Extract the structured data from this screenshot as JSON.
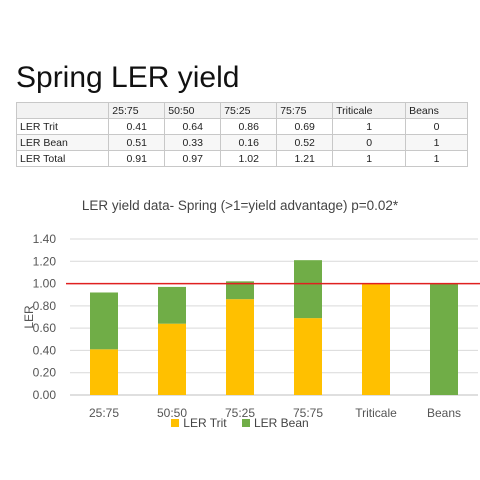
{
  "slide": {
    "title": "Spring LER yield"
  },
  "table": {
    "header": [
      "",
      "25:75",
      "50:50",
      "75:25",
      "75:75",
      "Triticale",
      "Beans"
    ],
    "rows": [
      [
        "LER Trit",
        "0.41",
        "0.64",
        "0.86",
        "0.69",
        "1",
        "0"
      ],
      [
        "LER Bean",
        "0.51",
        "0.33",
        "0.16",
        "0.52",
        "0",
        "1"
      ],
      [
        "LER Total",
        "0.91",
        "0.97",
        "1.02",
        "1.21",
        "1",
        "1"
      ]
    ]
  },
  "chart_data": {
    "type": "bar",
    "stacked": true,
    "title": "LER yield data- Spring (>1=yield advantage) p=0.02*",
    "xlabel": "",
    "ylabel": "LER",
    "ylim": [
      0,
      1.4
    ],
    "yticks": [
      "0.00",
      "0.20",
      "0.40",
      "0.60",
      "0.80",
      "1.00",
      "1.20",
      "1.40"
    ],
    "categories": [
      "25:75",
      "50:50",
      "75:25",
      "75:75",
      "Triticale",
      "Beans"
    ],
    "series": [
      {
        "name": "LER Trit",
        "color": "#FFC000",
        "values": [
          0.41,
          0.64,
          0.86,
          0.69,
          1,
          0
        ]
      },
      {
        "name": "LER Bean",
        "color": "#70AD47",
        "values": [
          0.51,
          0.33,
          0.16,
          0.52,
          0,
          1
        ]
      }
    ],
    "reference_line": {
      "value": 1.0,
      "color": "#E02020"
    },
    "grid": true,
    "legend_position": "bottom"
  }
}
